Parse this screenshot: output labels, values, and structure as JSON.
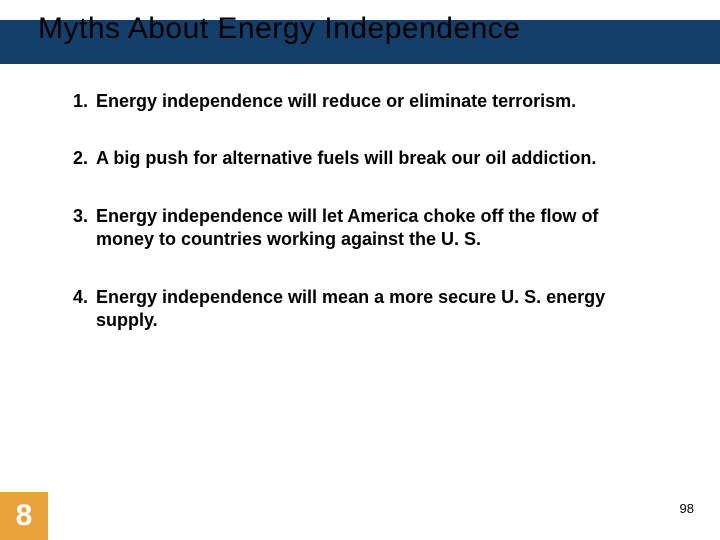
{
  "title": "Myths About Energy Independence",
  "items": [
    {
      "n": "1.",
      "text": "Energy independence will reduce or eliminate terrorism."
    },
    {
      "n": "2.",
      "text": "A big push for alternative fuels will break our oil addiction."
    },
    {
      "n": "3.",
      "text": "Energy independence will let America choke off the flow of money to countries working against the U. S."
    },
    {
      "n": "4.",
      "text": "Energy independence will mean a more secure U. S. energy supply."
    }
  ],
  "chapter": "8",
  "page": "98",
  "colors": {
    "title_bar": "#143f6a",
    "chapter_box": "#e9a33b",
    "background": "#ffffff",
    "text": "#000000"
  },
  "title_fontsize": 30,
  "item_fontsize": 18
}
